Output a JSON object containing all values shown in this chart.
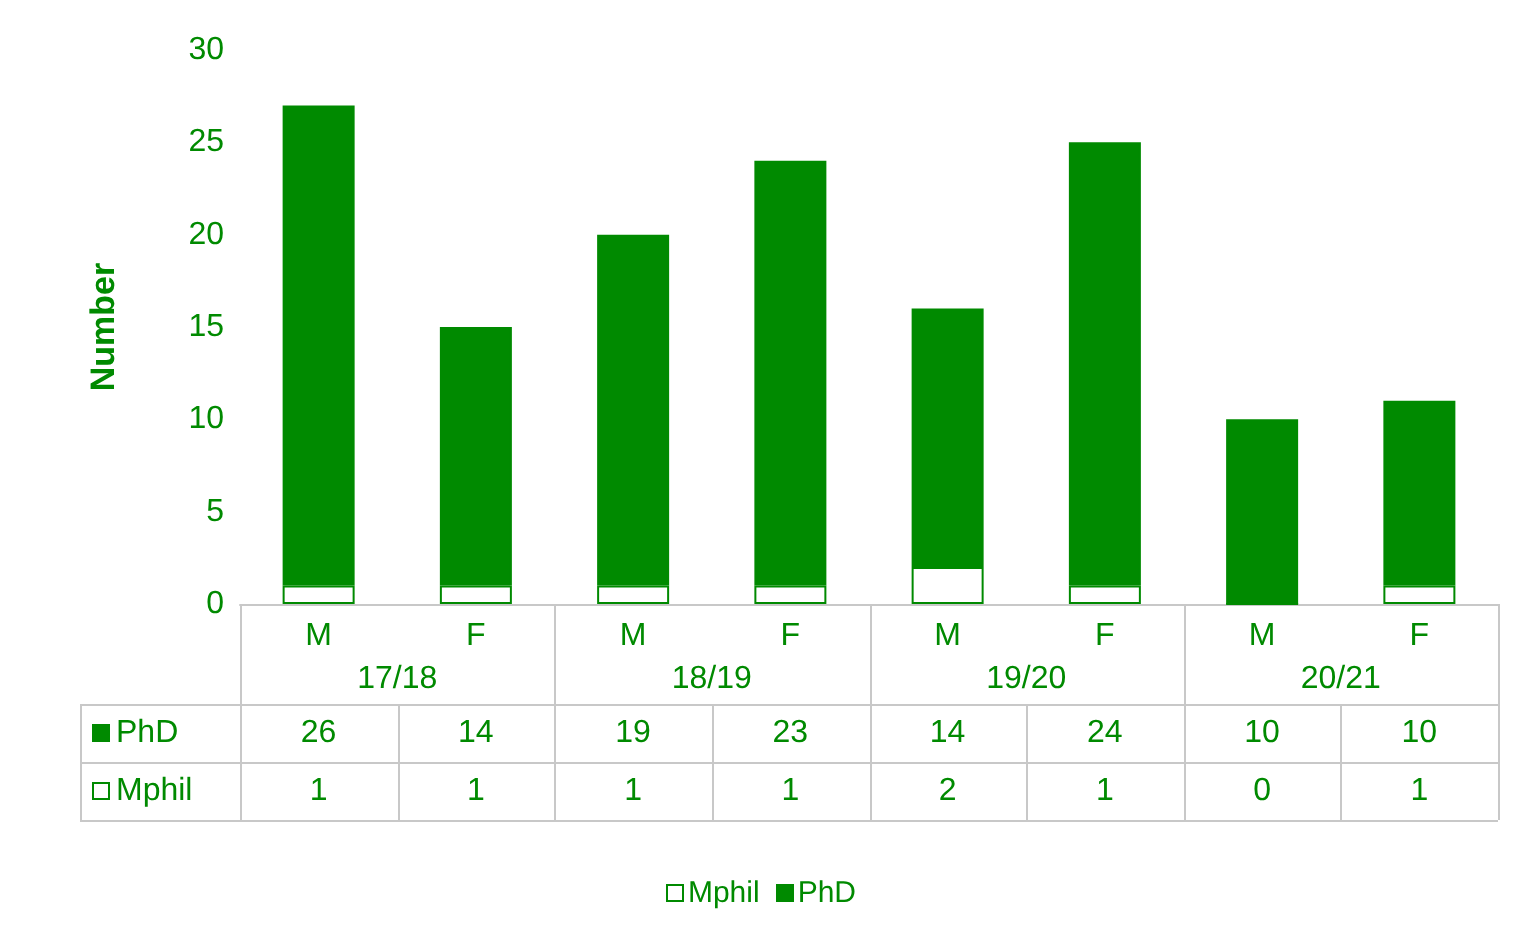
{
  "chart_data": {
    "type": "bar",
    "stacked": true,
    "ylabel": "Number",
    "categories": [
      "M",
      "F",
      "M",
      "F",
      "M",
      "F",
      "M",
      "F"
    ],
    "annotations": [
      "17/18",
      "18/19",
      "19/20",
      "20/21"
    ],
    "series": [
      {
        "name": "Mphil",
        "color": "#ffffff",
        "values": [
          1,
          1,
          1,
          1,
          2,
          1,
          0,
          1
        ]
      },
      {
        "name": "PhD",
        "color": "#008a00",
        "values": [
          26,
          14,
          19,
          23,
          14,
          24,
          10,
          10
        ]
      }
    ],
    "ylim": [
      0,
      30
    ],
    "yticks": [
      0,
      5,
      10,
      15,
      20,
      25,
      30
    ],
    "grid": false,
    "legend": "bottom",
    "data_labels": true
  }
}
